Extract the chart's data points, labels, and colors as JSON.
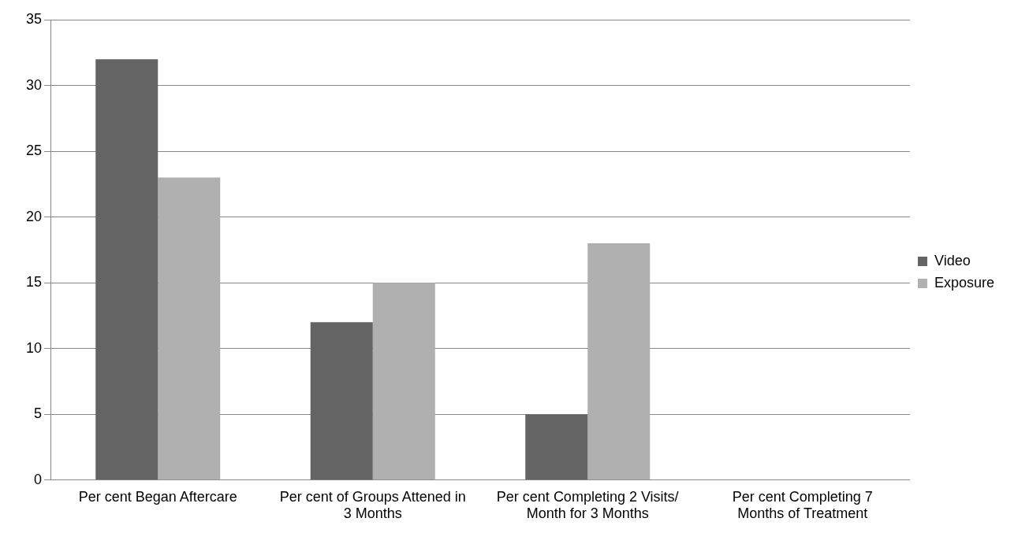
{
  "chart_data": {
    "type": "bar",
    "categories": [
      "Per cent Began Aftercare",
      "Per cent of Groups Attened in 3 Months",
      "Per cent Completing 2 Visits/ Month for 3 Months",
      "Per cent Completing 7 Months of Treatment"
    ],
    "series": [
      {
        "name": "Video",
        "color": "#646464",
        "values": [
          32,
          12,
          5,
          null
        ]
      },
      {
        "name": "Exposure",
        "color": "#b0b0b0",
        "values": [
          23,
          15,
          18,
          null
        ]
      }
    ],
    "ylim": [
      0,
      35
    ],
    "yticks": [
      0,
      5,
      10,
      15,
      20,
      25,
      30,
      35
    ],
    "grid": "y",
    "legend": "right"
  }
}
